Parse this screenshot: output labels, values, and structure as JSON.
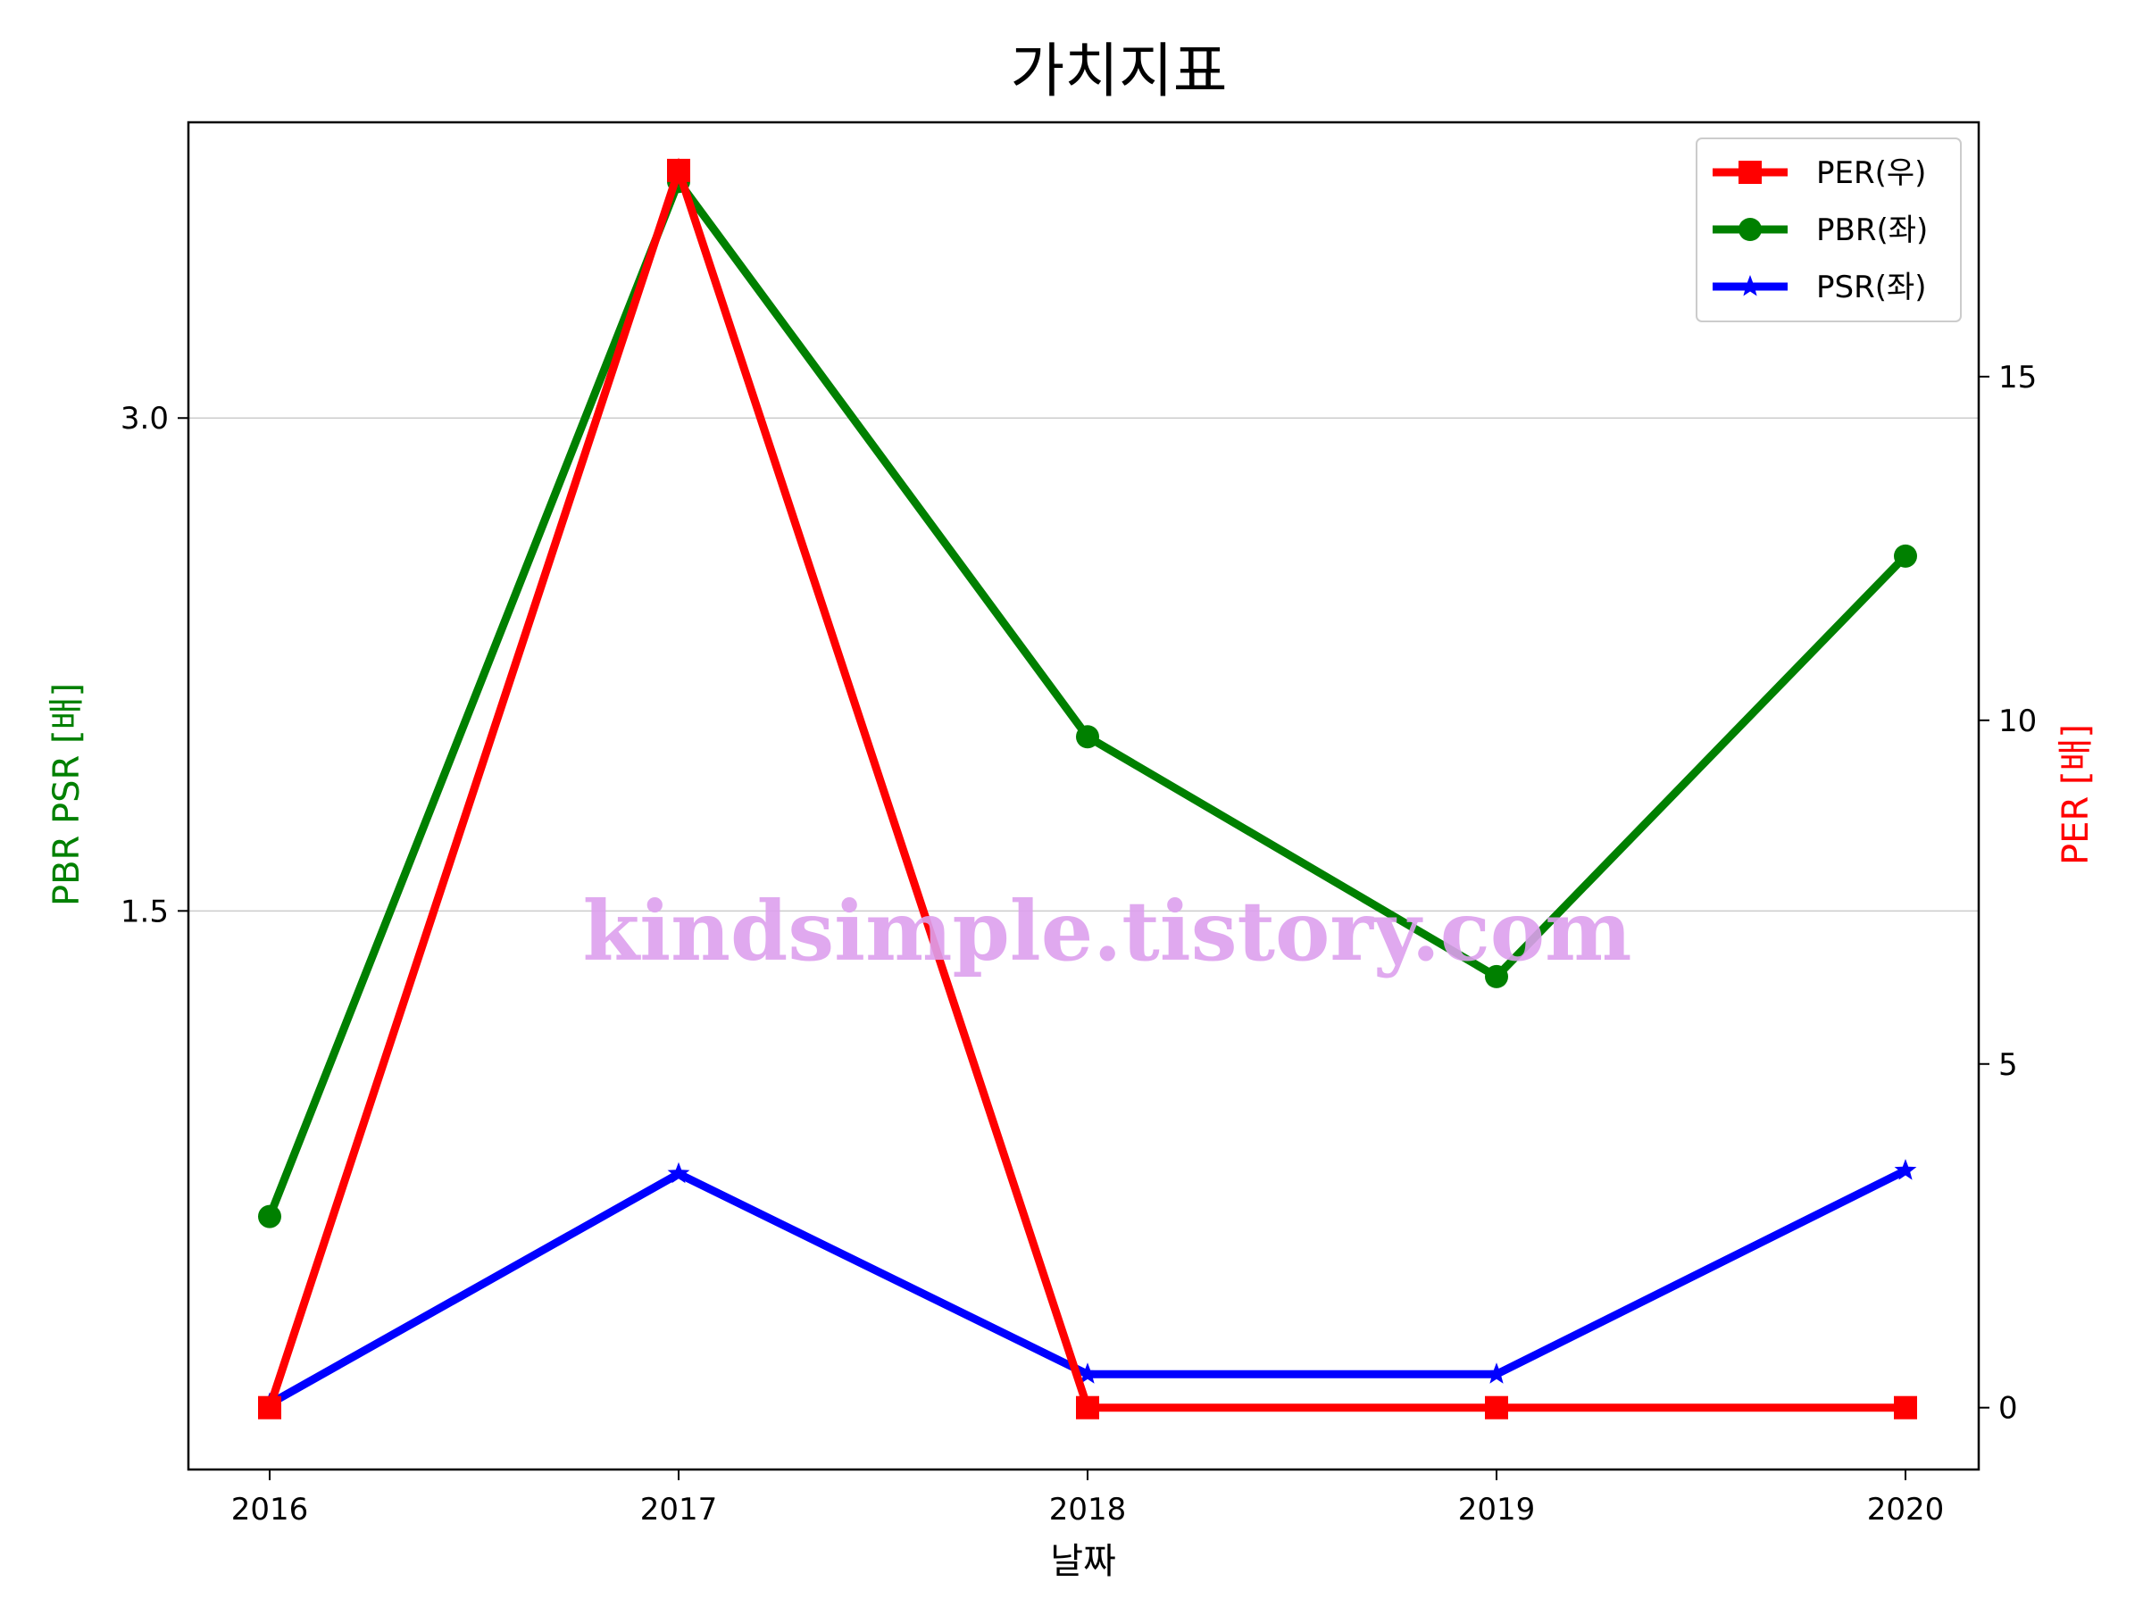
{
  "chart_data": {
    "type": "line",
    "title": "가치지표",
    "xlabel": "날짜",
    "ylabel_left": "PBR PSR [배]",
    "ylabel_right": "PER [배]",
    "categories": [
      "2016",
      "2017",
      "2018",
      "2019",
      "2020"
    ],
    "left_axis": {
      "ylim": [
        -0.2,
        3.9
      ],
      "ticks": [
        1.5,
        3.0
      ],
      "tick_labels": [
        "1.5",
        "3.0"
      ],
      "grid": true
    },
    "right_axis": {
      "ylim": [
        -0.9,
        18.7
      ],
      "ticks": [
        0,
        5,
        10,
        15
      ],
      "tick_labels": [
        "0",
        "5",
        "10",
        "15"
      ]
    },
    "series": [
      {
        "name": "PER(우)",
        "axis": "right",
        "color": "#ff0000",
        "marker": "square",
        "values": [
          0,
          18,
          0,
          0,
          0
        ]
      },
      {
        "name": "PBR(좌)",
        "axis": "left",
        "color": "#008000",
        "marker": "circle",
        "values": [
          0.57,
          3.72,
          2.03,
          1.3,
          2.58
        ]
      },
      {
        "name": "PSR(좌)",
        "axis": "left",
        "color": "#0000ff",
        "marker": "star",
        "values": [
          0.0,
          0.7,
          0.09,
          0.09,
          0.71
        ]
      }
    ],
    "legend": {
      "placement": "top-right"
    }
  },
  "watermark": "kindsimple.tistory.com"
}
